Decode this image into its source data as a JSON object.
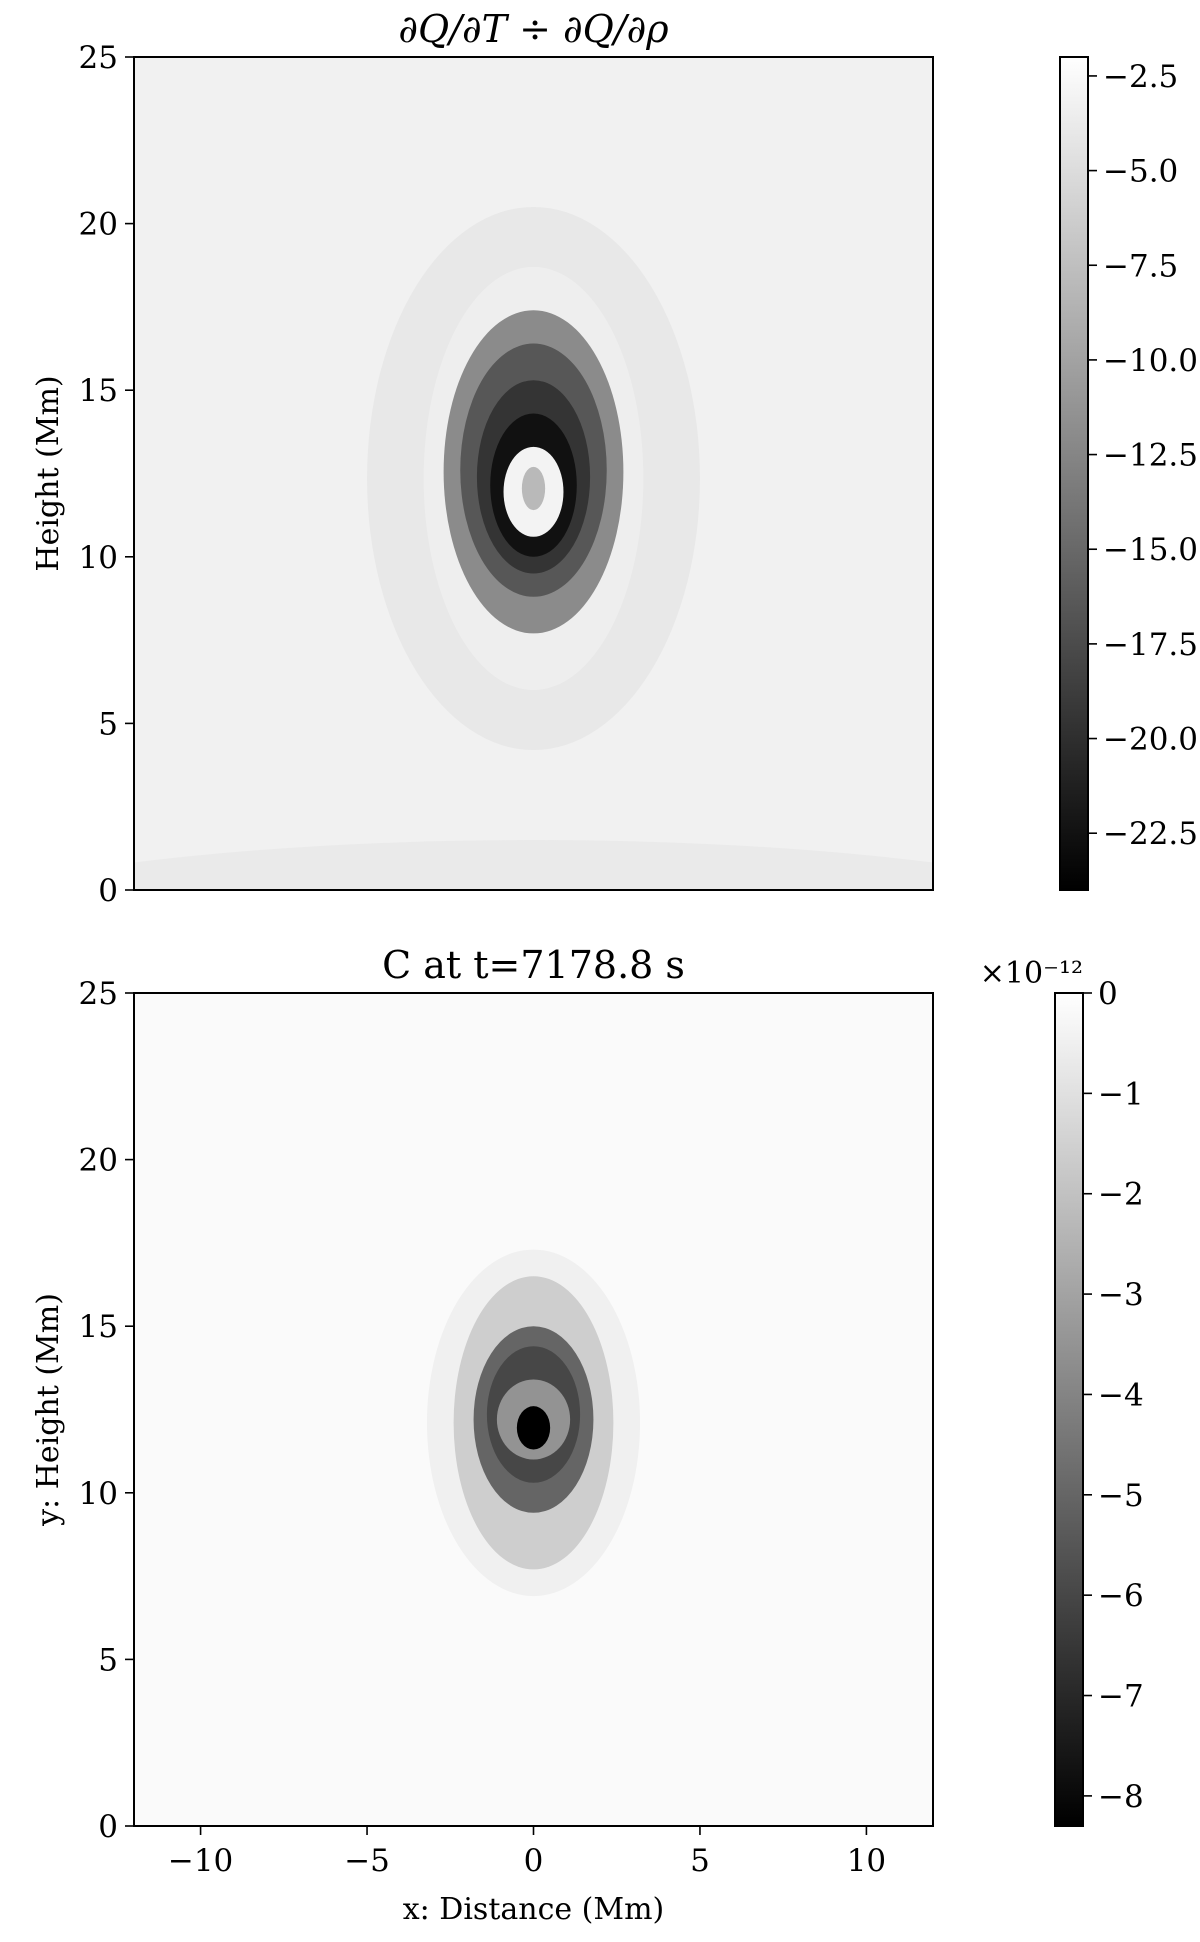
{
  "chart_data": [
    {
      "type": "heatmap",
      "title": "∂Q/∂T ÷ ∂Q/∂ρ",
      "xlabel": "",
      "ylabel": "Height (Mm)",
      "xlim": [
        -12,
        12
      ],
      "ylim": [
        0,
        25
      ],
      "x_ticks": [],
      "y_ticks": [
        0,
        5,
        10,
        15,
        20,
        25
      ],
      "y_tick_labels": [
        "0",
        "5",
        "10",
        "15",
        "20",
        "25"
      ],
      "colormap": "gray",
      "colorbar": {
        "range": [
          -24.0,
          -2.0
        ],
        "ticks": [
          -2.5,
          -5.0,
          -7.5,
          -10.0,
          -12.5,
          -15.0,
          -17.5,
          -20.0,
          -22.5
        ],
        "tick_labels": [
          "−2.5",
          "−5.0",
          "−7.5",
          "−10.0",
          "−12.5",
          "−15.0",
          "−17.5",
          "−20.0",
          "−22.5"
        ],
        "offset_text": ""
      },
      "center": [
        0,
        12
      ],
      "structure": [
        {
          "x_half_width": 5.0,
          "y_top": 20.5,
          "y_bottom": 4.2,
          "value": -4.0
        },
        {
          "x_half_width": 3.3,
          "y_top": 18.7,
          "y_bottom": 6.0,
          "value": -3.5
        },
        {
          "x_half_width": 2.7,
          "y_top": 17.4,
          "y_bottom": 7.7,
          "value": -12.0
        },
        {
          "x_half_width": 2.2,
          "y_top": 16.4,
          "y_bottom": 8.8,
          "value": -16.5
        },
        {
          "x_half_width": 1.7,
          "y_top": 15.3,
          "y_bottom": 9.5,
          "value": -19.5
        },
        {
          "x_half_width": 1.3,
          "y_top": 14.3,
          "y_bottom": 10.0,
          "value": -22.5
        },
        {
          "x_half_width": 0.9,
          "y_top": 13.3,
          "y_bottom": 10.6,
          "value": -3.0
        },
        {
          "x_half_width": 0.35,
          "y_top": 12.7,
          "y_bottom": 11.4,
          "value": -8.0
        }
      ]
    },
    {
      "type": "heatmap",
      "title": "C at t=7178.8 s",
      "xlabel": "x: Distance (Mm)",
      "ylabel": "y: Height (Mm)",
      "xlim": [
        -12,
        12
      ],
      "ylim": [
        0,
        25
      ],
      "x_ticks": [
        -10,
        -5,
        0,
        5,
        10
      ],
      "x_tick_labels": [
        "−10",
        "−5",
        "0",
        "5",
        "10"
      ],
      "y_ticks": [
        0,
        5,
        10,
        15,
        20,
        25
      ],
      "y_tick_labels": [
        "0",
        "5",
        "10",
        "15",
        "20",
        "25"
      ],
      "colormap": "gray",
      "colorbar": {
        "range": [
          -8.3,
          0
        ],
        "ticks": [
          0,
          -1,
          -2,
          -3,
          -4,
          -5,
          -6,
          -7,
          -8
        ],
        "tick_labels": [
          "0",
          "−1",
          "−2",
          "−3",
          "−4",
          "−5",
          "−6",
          "−7",
          "−8"
        ],
        "offset_text": "×10⁻¹²"
      },
      "center": [
        0,
        12
      ],
      "structure": [
        {
          "x_half_width": 3.2,
          "y_top": 17.3,
          "y_bottom": 6.9,
          "value": -0.5
        },
        {
          "x_half_width": 2.4,
          "y_top": 16.5,
          "y_bottom": 7.7,
          "value": -1.6
        },
        {
          "x_half_width": 1.8,
          "y_top": 15.0,
          "y_bottom": 9.4,
          "value": -5.0
        },
        {
          "x_half_width": 1.4,
          "y_top": 14.4,
          "y_bottom": 10.3,
          "value": -6.0
        },
        {
          "x_half_width": 1.1,
          "y_top": 13.4,
          "y_bottom": 11.0,
          "value": -3.5
        },
        {
          "x_half_width": 0.5,
          "y_top": 12.6,
          "y_bottom": 11.3,
          "value": -8.3
        }
      ]
    }
  ]
}
